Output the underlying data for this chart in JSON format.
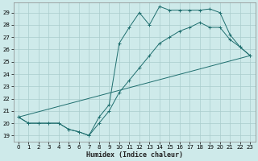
{
  "xlabel": "Humidex (Indice chaleur)",
  "background_color": "#ceeaea",
  "grid_color": "#aacccc",
  "line_color": "#1e6e6e",
  "xlim": [
    -0.5,
    23.5
  ],
  "ylim": [
    18.5,
    29.8
  ],
  "yticks": [
    19,
    20,
    21,
    22,
    23,
    24,
    25,
    26,
    27,
    28,
    29
  ],
  "xticks": [
    0,
    1,
    2,
    3,
    4,
    5,
    6,
    7,
    8,
    9,
    10,
    11,
    12,
    13,
    14,
    15,
    16,
    17,
    18,
    19,
    20,
    21,
    22,
    23
  ],
  "series": [
    {
      "x": [
        0,
        1,
        2,
        3,
        4,
        5,
        6,
        7,
        8,
        9,
        10,
        11,
        12,
        13,
        14,
        15,
        16,
        17,
        18,
        19,
        20,
        21,
        22,
        23
      ],
      "y": [
        20.5,
        20.0,
        20.0,
        20.0,
        20.0,
        19.5,
        19.3,
        19.0,
        20.5,
        21.5,
        26.5,
        27.8,
        29.0,
        28.0,
        29.5,
        29.2,
        29.2,
        29.2,
        29.2,
        29.3,
        29.0,
        27.2,
        26.2,
        25.5
      ],
      "with_markers": true
    },
    {
      "x": [
        0,
        1,
        2,
        3,
        4,
        5,
        6,
        7,
        8,
        9,
        10,
        11,
        12,
        13,
        14,
        15,
        16,
        17,
        18,
        19,
        20,
        21,
        22,
        23
      ],
      "y": [
        20.5,
        20.0,
        20.0,
        20.0,
        20.0,
        19.5,
        19.3,
        19.0,
        20.0,
        21.0,
        22.5,
        23.5,
        24.5,
        25.5,
        26.5,
        27.0,
        27.5,
        27.8,
        28.2,
        27.8,
        27.8,
        26.8,
        26.2,
        25.5
      ],
      "with_markers": true
    },
    {
      "x": [
        0,
        23
      ],
      "y": [
        20.5,
        25.5
      ],
      "with_markers": false
    }
  ]
}
